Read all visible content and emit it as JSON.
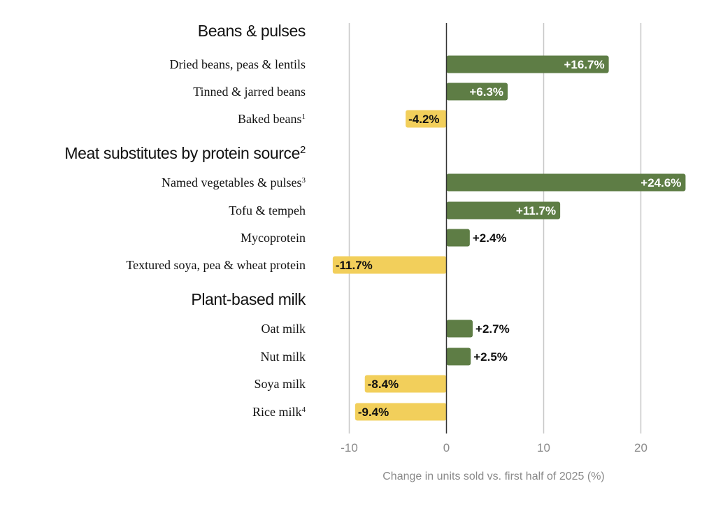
{
  "chart_data": {
    "type": "bar",
    "orientation": "horizontal",
    "xlabel": "Change in units sold vs. first half of 2025 (%)",
    "xlim": [
      -14,
      26
    ],
    "xticks": [
      -10,
      0,
      10,
      20
    ],
    "xtick_labels": [
      "-10",
      "0",
      "10",
      "20"
    ],
    "grid": true,
    "colors": {
      "positive": "#5e7d45",
      "negative": "#f2cf5b",
      "positive_text": "#ffffff",
      "negative_text": "#111111",
      "outside_text": "#111111"
    },
    "groups": [
      {
        "title": "Beans & pulses",
        "title_sup": "",
        "items": [
          {
            "label": "Dried beans, peas & lentils",
            "sup": "",
            "value": 16.7,
            "value_label": "+16.7%"
          },
          {
            "label": "Tinned & jarred beans",
            "sup": "",
            "value": 6.3,
            "value_label": "+6.3%"
          },
          {
            "label": "Baked beans",
            "sup": "1",
            "value": -4.2,
            "value_label": "-4.2%"
          }
        ]
      },
      {
        "title": "Meat substitutes by protein source",
        "title_sup": "2",
        "items": [
          {
            "label": "Named vegetables & pulses",
            "sup": "3",
            "value": 24.6,
            "value_label": "+24.6%"
          },
          {
            "label": "Tofu & tempeh",
            "sup": "",
            "value": 11.7,
            "value_label": "+11.7%"
          },
          {
            "label": "Mycoprotein",
            "sup": "",
            "value": 2.4,
            "value_label": "+2.4%"
          },
          {
            "label": "Textured soya, pea & wheat protein",
            "sup": "",
            "value": -11.7,
            "value_label": "-11.7%"
          }
        ]
      },
      {
        "title": "Plant-based milk",
        "title_sup": "",
        "items": [
          {
            "label": "Oat milk",
            "sup": "",
            "value": 2.7,
            "value_label": "+2.7%"
          },
          {
            "label": "Nut milk",
            "sup": "",
            "value": 2.5,
            "value_label": "+2.5%"
          },
          {
            "label": "Soya milk",
            "sup": "",
            "value": -8.4,
            "value_label": "-8.4%"
          },
          {
            "label": "Rice milk",
            "sup": "4",
            "value": -9.4,
            "value_label": "-9.4%"
          }
        ]
      }
    ]
  }
}
